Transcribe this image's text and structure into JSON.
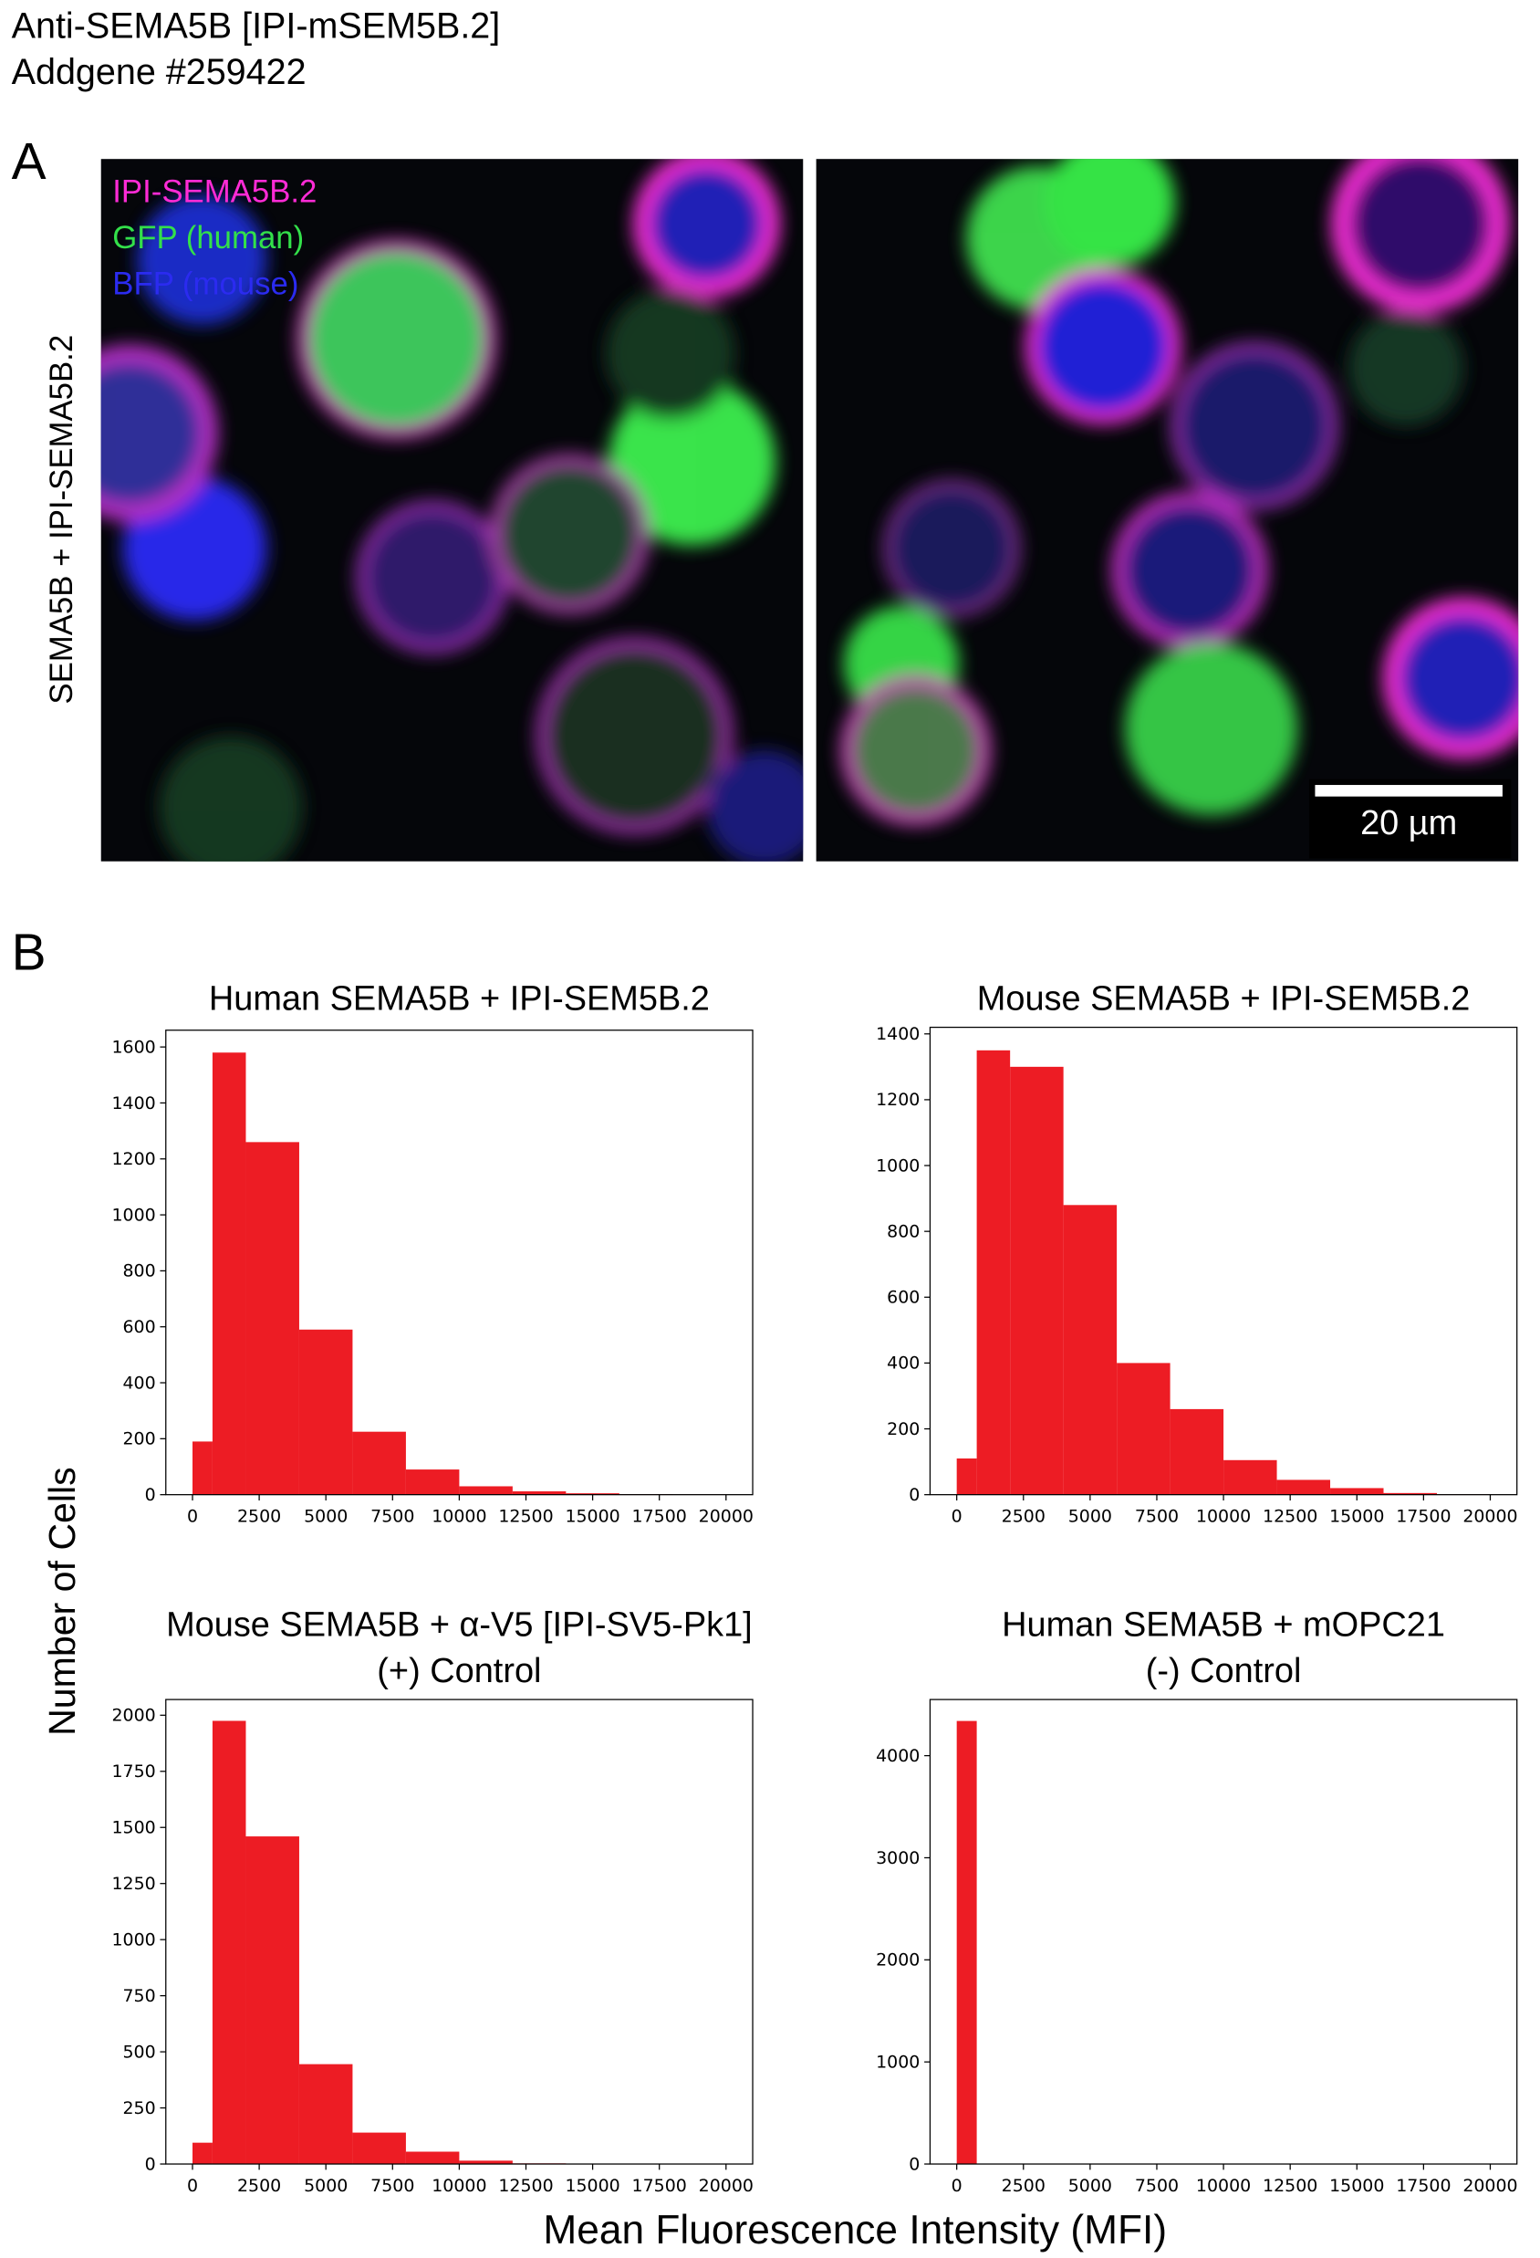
{
  "header": {
    "title": "Anti-SEMA5B [IPI-mSEM5B.2]",
    "subtitle": "Addgene #259422"
  },
  "panel_a": {
    "label": "A",
    "row_label": "SEMA5B + IPI-SEMA5B.2",
    "legend": [
      {
        "text": "IPI-SEMA5B.2",
        "color": "#ff2bd6"
      },
      {
        "text": "GFP (human)",
        "color": "#33e04a"
      },
      {
        "text": "BFP (mouse)",
        "color": "#2b2bf0"
      }
    ],
    "scale_bar": "20 µm"
  },
  "panel_b": {
    "label": "B",
    "y_label": "Number of Cells",
    "x_label": "Mean Fluorescence Intensity (MFI)"
  },
  "chart_data": [
    {
      "type": "histogram",
      "title": "Human SEMA5B + IPI-SEM5B.2",
      "color": "#ed1c24",
      "bins": [
        0,
        750,
        2000,
        4000,
        6000,
        8000,
        10000,
        12000,
        14000,
        16000,
        18000,
        20000
      ],
      "values": [
        190,
        1580,
        1260,
        590,
        225,
        90,
        30,
        12,
        5,
        2,
        1
      ],
      "xlim": [
        -1000,
        21000
      ],
      "ylim": [
        0,
        1660
      ],
      "xticks": [
        0,
        2500,
        5000,
        7500,
        10000,
        12500,
        15000,
        17500,
        20000
      ],
      "yticks": [
        0,
        200,
        400,
        600,
        800,
        1000,
        1200,
        1400,
        1600
      ]
    },
    {
      "type": "histogram",
      "title": "Mouse SEMA5B + IPI-SEM5B.2",
      "color": "#ed1c24",
      "bins": [
        0,
        750,
        2000,
        4000,
        6000,
        8000,
        10000,
        12000,
        14000,
        16000,
        18000,
        20000
      ],
      "values": [
        110,
        1350,
        1300,
        880,
        400,
        260,
        105,
        45,
        20,
        5,
        1
      ],
      "xlim": [
        -1000,
        21000
      ],
      "ylim": [
        0,
        1420
      ],
      "xticks": [
        0,
        2500,
        5000,
        7500,
        10000,
        12500,
        15000,
        17500,
        20000
      ],
      "yticks": [
        0,
        200,
        400,
        600,
        800,
        1000,
        1200,
        1400
      ]
    },
    {
      "type": "histogram",
      "title": "Mouse SEMA5B + α-V5 [IPI-SV5-Pk1]",
      "subtitle": "(+) Control",
      "color": "#ed1c24",
      "bins": [
        0,
        750,
        2000,
        4000,
        6000,
        8000,
        10000,
        12000,
        14000,
        16000,
        18000,
        20000
      ],
      "values": [
        95,
        1975,
        1460,
        445,
        140,
        55,
        15,
        3,
        1,
        0,
        0
      ],
      "xlim": [
        -1000,
        21000
      ],
      "ylim": [
        0,
        2070
      ],
      "xticks": [
        0,
        2500,
        5000,
        7500,
        10000,
        12500,
        15000,
        17500,
        20000
      ],
      "yticks": [
        0,
        250,
        500,
        750,
        1000,
        1250,
        1500,
        1750,
        2000
      ]
    },
    {
      "type": "histogram",
      "title": "Human SEMA5B + mOPC21",
      "subtitle": "(-) Control",
      "color": "#ed1c24",
      "bins": [
        0,
        750,
        2000,
        4000,
        6000,
        8000,
        10000,
        12000,
        14000,
        16000,
        18000,
        20000
      ],
      "values": [
        4340,
        0,
        0,
        0,
        0,
        0,
        0,
        0,
        0,
        0,
        0
      ],
      "xlim": [
        -1000,
        21000
      ],
      "ylim": [
        0,
        4550
      ],
      "xticks": [
        0,
        2500,
        5000,
        7500,
        10000,
        12500,
        15000,
        17500,
        20000
      ],
      "yticks": [
        0,
        1000,
        2000,
        3000,
        4000
      ]
    }
  ]
}
